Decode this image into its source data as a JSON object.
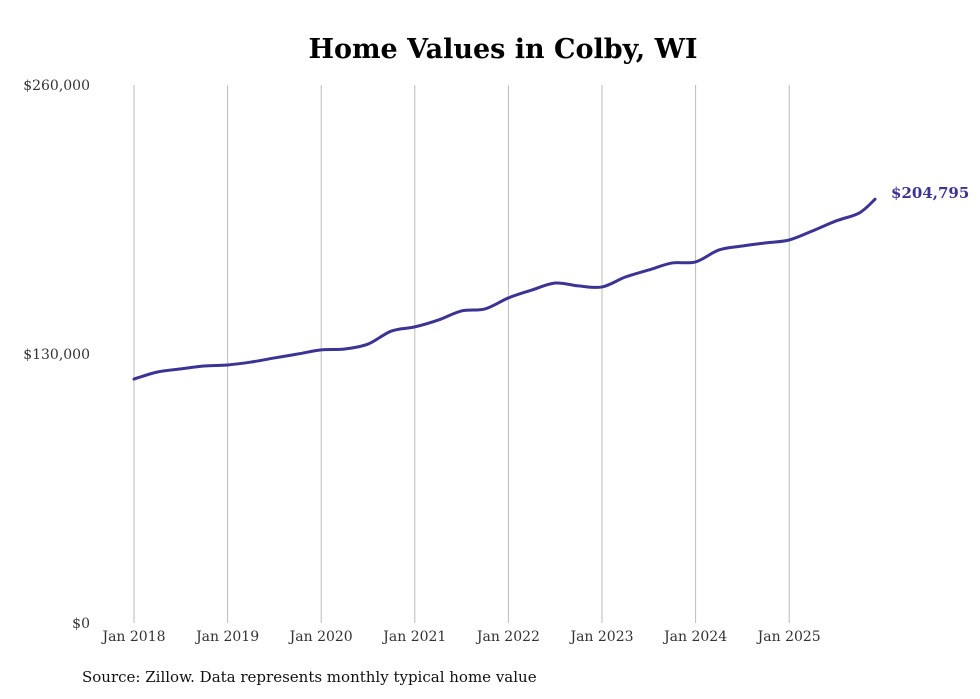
{
  "chart_data": {
    "type": "line",
    "title": "Home Values in Colby, WI",
    "xlabel": "",
    "ylabel": "",
    "ylim": [
      0,
      260000
    ],
    "xlim": [
      2018,
      2026
    ],
    "y_ticks": [
      {
        "value": 0,
        "label": "$0"
      },
      {
        "value": 130000,
        "label": "$130,000"
      },
      {
        "value": 260000,
        "label": "$260,000"
      }
    ],
    "x_ticks": [
      {
        "value": 2018,
        "label": "Jan 2018"
      },
      {
        "value": 2019,
        "label": "Jan 2019"
      },
      {
        "value": 2020,
        "label": "Jan 2020"
      },
      {
        "value": 2021,
        "label": "Jan 2021"
      },
      {
        "value": 2022,
        "label": "Jan 2022"
      },
      {
        "value": 2023,
        "label": "Jan 2023"
      },
      {
        "value": 2024,
        "label": "Jan 2024"
      },
      {
        "value": 2025,
        "label": "Jan 2025"
      }
    ],
    "grid": "vertical",
    "series": [
      {
        "name": "Typical home value",
        "color": "#3b3494",
        "x": [
          2018,
          2018.25,
          2018.5,
          2018.75,
          2019,
          2019.25,
          2019.5,
          2019.75,
          2020,
          2020.25,
          2020.5,
          2020.75,
          2021,
          2021.25,
          2021.5,
          2021.75,
          2022,
          2022.25,
          2022.5,
          2022.75,
          2023,
          2023.25,
          2023.5,
          2023.75,
          2024,
          2024.25,
          2024.5,
          2024.75,
          2025,
          2025.25,
          2025.5,
          2025.75,
          2025.917
        ],
        "values": [
          117900,
          121300,
          122800,
          124200,
          124700,
          126100,
          128100,
          130000,
          132000,
          132400,
          134800,
          141100,
          143100,
          146400,
          150800,
          151800,
          157100,
          160900,
          164300,
          162900,
          162400,
          167200,
          170600,
          174000,
          174500,
          180300,
          182200,
          183700,
          185100,
          189500,
          194300,
          198200,
          204795
        ]
      }
    ],
    "end_label": "$204,795"
  },
  "source": "Source: Zillow. Data represents monthly typical home value"
}
